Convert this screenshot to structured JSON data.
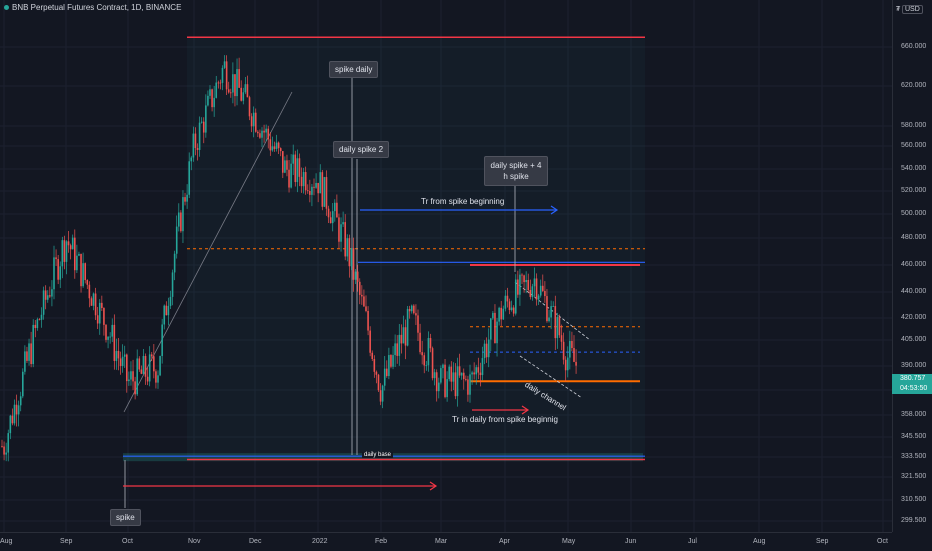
{
  "header": {
    "title": "BNB Perpetual Futures Contract, 1D, BINANCE"
  },
  "price_axis": {
    "currency": "USD",
    "ticks": [
      "660.000",
      "620.000",
      "580.000",
      "560.000",
      "540.000",
      "520.000",
      "500.000",
      "480.000",
      "460.000",
      "440.000",
      "420.000",
      "405.000",
      "390.000",
      "375.000",
      "358.000",
      "345.500",
      "333.500",
      "321.500",
      "310.500",
      "299.500"
    ],
    "current_price": "380.757",
    "countdown": "04:53:50"
  },
  "time_axis": {
    "ticks": [
      "Aug",
      "Sep",
      "Oct",
      "Nov",
      "Dec",
      "2022",
      "Feb",
      "Mar",
      "Apr",
      "May",
      "Jun",
      "Jul",
      "Aug",
      "Sep",
      "Oct"
    ]
  },
  "annotations": {
    "spike": "spike",
    "spike_daily": "spike daily",
    "daily_spike_2": "daily spike 2",
    "daily_spike_4h": "daily spike + 4 h spike",
    "tr_from_spike": "Tr from spike beginning",
    "tr_in_daily": "Tr in daily  from spike beginnig",
    "daily_channel": "daily channel",
    "daily_base": "daily base"
  },
  "colors": {
    "up": "#26a69a",
    "down": "#ef5350",
    "background": "#131722",
    "red_line": "#f23645",
    "blue_line": "#2962ff",
    "orange_line": "#ff6d00"
  },
  "chart_data": {
    "type": "candlestick",
    "symbol": "BNB Perpetual Futures Contract",
    "timeframe": "1D",
    "exchange": "BINANCE",
    "x_ticks": [
      "Aug",
      "Sep",
      "Oct",
      "Nov",
      "Dec",
      "2022",
      "Feb",
      "Mar",
      "Apr",
      "May",
      "Jun",
      "Jul",
      "Aug",
      "Sep",
      "Oct"
    ],
    "y_ticks": [
      660,
      620,
      580,
      560,
      540,
      520,
      500,
      480,
      460,
      440,
      420,
      405,
      390,
      375,
      358,
      345.5,
      333.5,
      321.5,
      310.5,
      299.5
    ],
    "y_scale": "log",
    "ylim": [
      295,
      690
    ],
    "close_anchors": [
      [
        "Aug",
        340
      ],
      [
        "Sep",
        480
      ],
      [
        "Oct",
        380
      ],
      [
        "Oct",
        390
      ],
      [
        "Nov",
        560
      ],
      [
        "Nov",
        640
      ],
      [
        "Dec",
        590
      ],
      [
        "Dec",
        540
      ],
      [
        "2022",
        530
      ],
      [
        "2022",
        470
      ],
      [
        "Feb",
        375
      ],
      [
        "Feb",
        420
      ],
      [
        "Mar",
        380
      ],
      [
        "Mar",
        380
      ],
      [
        "Apr",
        430
      ],
      [
        "Apr",
        450
      ],
      [
        "May",
        395
      ],
      [
        "May",
        380.757
      ]
    ],
    "levels": {
      "range_high_red": 670,
      "range_low_red": 332,
      "daily_base_blue": 334,
      "blue_level_1": 462,
      "red_level_2": 460,
      "orange_dashed_1": 472,
      "orange_dashed_2": 414,
      "blue_dashed": 398,
      "orange_solid": 380.5
    },
    "current_price": 380.757
  }
}
